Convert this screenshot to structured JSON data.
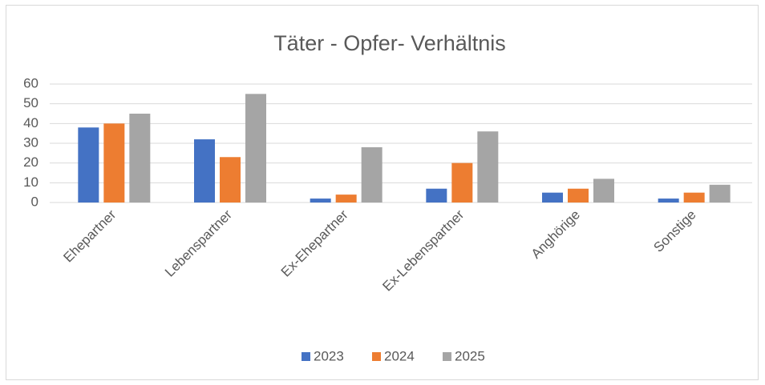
{
  "chart_data": {
    "type": "bar",
    "title": "Täter - Opfer- Verhältnis",
    "categories": [
      "Ehepartner",
      "Lebenspartner",
      "Ex-Ehepartner",
      "Ex-Lebenspartner",
      "Anghörige",
      "Sonstige"
    ],
    "series": [
      {
        "name": "2023",
        "color": "#4472c4",
        "values": [
          38,
          32,
          2,
          7,
          5,
          2
        ]
      },
      {
        "name": "2024",
        "color": "#ed7d31",
        "values": [
          40,
          23,
          4,
          20,
          7,
          5
        ]
      },
      {
        "name": "2025",
        "color": "#a5a5a5",
        "values": [
          45,
          55,
          28,
          36,
          12,
          9
        ]
      }
    ],
    "ylim": [
      0,
      60
    ],
    "yticks": [
      0,
      10,
      20,
      30,
      40,
      50,
      60
    ],
    "grid": true,
    "legend": "bottom"
  }
}
